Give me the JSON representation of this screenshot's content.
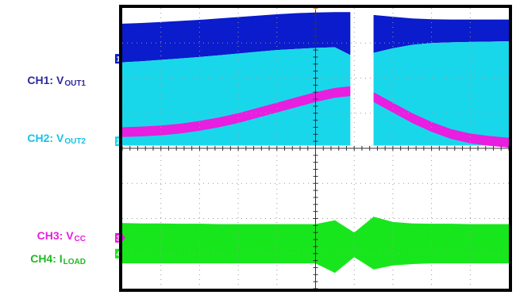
{
  "chart_data": {
    "type": "line",
    "title": "",
    "xlabel": "",
    "ylabel": "",
    "grid": true,
    "grid_divisions": {
      "x": 10,
      "y": 8
    },
    "x": [
      0,
      0.5,
      1,
      1.5,
      2,
      2.5,
      3,
      3.5,
      4,
      4.5,
      5,
      5.5,
      6,
      6.5,
      7,
      7.5,
      8,
      8.5,
      9,
      9.5,
      10
    ],
    "xlim": [
      0,
      10
    ],
    "ylim": [
      0,
      8
    ],
    "gap": {
      "start": 5.9,
      "end": 6.5
    },
    "colors": {
      "frame": "#000000",
      "grid": "#9a9a9a",
      "ch1": "#0a1ccb",
      "ch2": "#19d7eb",
      "ch3": "#e81ee0",
      "ch4": "#18e61c",
      "background": "#ffffff"
    },
    "series": [
      {
        "name": "CH1: VOUT1",
        "channel": "CH1",
        "label_main": "CH1: V",
        "label_sub": "OUT1",
        "color": "#0a1ccb",
        "marker": "1",
        "marker_level": 6.55,
        "upper": [
          7.55,
          7.57,
          7.6,
          7.63,
          7.66,
          7.7,
          7.74,
          7.78,
          7.82,
          7.85,
          7.87,
          7.88,
          7.88,
          7.8,
          7.75,
          7.7,
          7.68,
          7.67,
          7.67,
          7.67,
          7.67
        ],
        "lower": [
          6.45,
          6.48,
          6.52,
          6.56,
          6.6,
          6.65,
          6.7,
          6.75,
          6.8,
          6.83,
          6.86,
          6.88,
          6.6,
          6.72,
          6.85,
          6.95,
          7.0,
          7.02,
          7.03,
          7.04,
          7.05
        ]
      },
      {
        "name": "CH2: VOUT2",
        "channel": "CH2",
        "label_main": "CH2: V",
        "label_sub": "OUT2",
        "color": "#19d7eb",
        "marker": "2",
        "marker_level": 4.2,
        "upper": [
          6.45,
          6.48,
          6.52,
          6.56,
          6.6,
          6.65,
          6.7,
          6.75,
          6.8,
          6.83,
          6.86,
          6.88,
          6.6,
          6.72,
          6.85,
          6.95,
          7.0,
          7.02,
          7.03,
          7.04,
          7.05
        ],
        "lower": [
          4.08,
          4.08,
          4.08,
          4.08,
          4.08,
          4.08,
          4.08,
          4.08,
          4.08,
          4.08,
          4.08,
          4.08,
          4.08,
          4.08,
          4.08,
          4.08,
          4.08,
          4.08,
          4.08,
          4.08,
          4.08
        ]
      },
      {
        "name": "CH3: VCC",
        "channel": "CH3",
        "label_main": "CH3: V",
        "label_sub": "CC",
        "color": "#e81ee0",
        "marker": "3",
        "marker_level": 1.45,
        "upper": [
          4.6,
          4.62,
          4.65,
          4.7,
          4.78,
          4.88,
          5.0,
          5.15,
          5.3,
          5.45,
          5.6,
          5.72,
          5.78,
          5.6,
          5.3,
          5.0,
          4.75,
          4.55,
          4.42,
          4.35,
          4.3
        ],
        "lower": [
          4.32,
          4.34,
          4.37,
          4.42,
          4.5,
          4.6,
          4.72,
          4.87,
          5.02,
          5.17,
          5.32,
          5.44,
          5.5,
          5.32,
          5.02,
          4.72,
          4.47,
          4.27,
          4.14,
          4.07,
          4.02
        ]
      },
      {
        "name": "CH4: ILOAD",
        "channel": "CH4",
        "label_main": "CH4: I",
        "label_sub": "LOAD",
        "color": "#18e61c",
        "marker": "4",
        "marker_level": 1.0,
        "upper": [
          1.87,
          1.86,
          1.86,
          1.85,
          1.85,
          1.84,
          1.84,
          1.84,
          1.84,
          1.84,
          1.84,
          1.95,
          1.6,
          2.05,
          1.9,
          1.86,
          1.85,
          1.85,
          1.84,
          1.84,
          1.84
        ],
        "lower": [
          0.72,
          0.72,
          0.72,
          0.72,
          0.72,
          0.72,
          0.72,
          0.72,
          0.72,
          0.72,
          0.72,
          0.45,
          0.9,
          0.55,
          0.66,
          0.7,
          0.72,
          0.72,
          0.72,
          0.72,
          0.72
        ]
      }
    ]
  }
}
